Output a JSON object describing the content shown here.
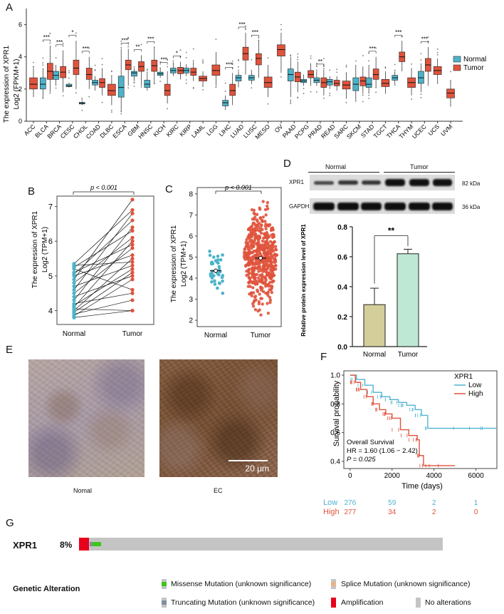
{
  "panels": {
    "A": "A",
    "B": "B",
    "C": "C",
    "D": "D",
    "E": "E",
    "F": "F",
    "G": "G"
  },
  "colors": {
    "normal": "#4cb3c9",
    "tumor": "#e0533c",
    "bar_normal": "#d4cf9a",
    "bar_tumor": "#bfe8d4",
    "amplification": "#e8001c",
    "missense": "#3cc71a",
    "truncating": "#7f8f9f",
    "splice": "#e8b48a",
    "no_alt": "#c4c4c4",
    "km_low": "#4fb4d0",
    "km_high": "#e0533c"
  },
  "chart_data": [
    {
      "id": "A",
      "type": "box",
      "ylabel": "The expression of XPR1",
      "ylabel2": "Log2 (FPKM+1)",
      "ylim": [
        0,
        7
      ],
      "yticks": [
        0,
        2,
        4,
        6
      ],
      "legend": [
        "Normal",
        "Tumor"
      ],
      "categories": [
        "ACC",
        "BLCA",
        "BRCA",
        "CESC",
        "CHOL",
        "COAD",
        "DLBC",
        "ESCA",
        "GBM",
        "HNSC",
        "KICH",
        "KIRC",
        "KIRP",
        "LAML",
        "LGG",
        "LIHC",
        "LUAD",
        "LUSC",
        "MESO",
        "OV",
        "PAAD",
        "PCPG",
        "PRAD",
        "READ",
        "SARC",
        "SKCM",
        "STAD",
        "TGCT",
        "THCA",
        "THYM",
        "UCEC",
        "UCS",
        "UVM"
      ],
      "significance": [
        "",
        "***",
        "***",
        "*",
        "***",
        "",
        "",
        "***",
        "**",
        "***",
        "***",
        "*",
        "",
        "",
        "",
        "***",
        "***",
        "***",
        "",
        "",
        "",
        "",
        "**",
        "",
        "",
        "",
        "***",
        "",
        "***",
        "",
        "***",
        "",
        ""
      ],
      "normal": [
        null,
        [
          1.5,
          2.0,
          2.3,
          2.7,
          3.3
        ],
        [
          2.2,
          2.6,
          2.85,
          3.1,
          3.5
        ],
        [
          2.1,
          2.15,
          2.2,
          2.3,
          2.4
        ],
        [
          1.0,
          1.07,
          1.12,
          1.17,
          1.25
        ],
        [
          1.9,
          2.25,
          2.4,
          2.55,
          2.8
        ],
        null,
        [
          0.6,
          1.5,
          2.1,
          2.8,
          4.5
        ],
        [
          2.5,
          2.8,
          3.0,
          3.1,
          3.3
        ],
        [
          1.9,
          2.1,
          2.3,
          2.55,
          3.0
        ],
        [
          2.7,
          2.85,
          2.95,
          3.05,
          3.3
        ],
        [
          2.8,
          3.0,
          3.15,
          3.3,
          3.6
        ],
        [
          2.8,
          3.0,
          3.15,
          3.3,
          3.55
        ],
        null,
        null,
        [
          0.7,
          0.95,
          1.15,
          1.3,
          1.6
        ],
        [
          2.1,
          2.5,
          2.7,
          2.85,
          3.1
        ],
        [
          2.3,
          2.55,
          2.7,
          2.85,
          3.1
        ],
        null,
        null,
        [
          1.5,
          2.5,
          2.9,
          3.25,
          4.0
        ],
        [
          2.2,
          2.4,
          2.5,
          2.6,
          2.9
        ],
        [
          2.2,
          2.4,
          2.55,
          2.7,
          3.1
        ],
        [
          2.0,
          2.25,
          2.45,
          2.6,
          2.8
        ],
        null,
        [
          1.3,
          1.9,
          2.3,
          2.7,
          3.5
        ],
        [
          1.8,
          2.1,
          2.3,
          2.7,
          3.5
        ],
        null,
        [
          2.3,
          2.55,
          2.7,
          2.85,
          3.1
        ],
        null,
        [
          1.8,
          2.35,
          2.7,
          3.1,
          3.6
        ],
        null,
        null
      ],
      "tumor": [
        [
          1.5,
          2.0,
          2.3,
          2.7,
          3.3
        ],
        [
          1.8,
          2.6,
          3.1,
          3.6,
          4.7
        ],
        [
          1.8,
          2.7,
          3.05,
          3.4,
          4.4
        ],
        [
          2.0,
          2.9,
          3.3,
          3.8,
          5.0
        ],
        [
          2.0,
          2.6,
          2.9,
          3.3,
          4.0
        ],
        [
          1.6,
          2.1,
          2.4,
          2.65,
          3.3
        ],
        [
          1.0,
          1.6,
          1.9,
          2.3,
          2.8
        ],
        [
          2.2,
          3.2,
          3.5,
          3.8,
          4.5
        ],
        [
          2.2,
          3.1,
          3.4,
          3.7,
          4.1
        ],
        [
          2.4,
          3.1,
          3.45,
          3.8,
          4.6
        ],
        [
          1.1,
          1.6,
          1.9,
          2.3,
          3.1
        ],
        [
          2.6,
          2.95,
          3.15,
          3.35,
          3.7
        ],
        [
          2.5,
          2.85,
          3.05,
          3.3,
          3.7
        ],
        [
          2.2,
          2.5,
          2.65,
          2.8,
          3.1
        ],
        [
          2.2,
          2.85,
          3.15,
          3.5,
          4.3
        ],
        [
          1.0,
          1.6,
          1.9,
          2.3,
          3.0
        ],
        [
          2.9,
          3.8,
          4.2,
          4.6,
          5.5
        ],
        [
          2.7,
          3.5,
          3.9,
          4.2,
          5.0
        ],
        [
          1.5,
          2.1,
          2.4,
          2.75,
          3.5
        ],
        [
          3.0,
          4.05,
          4.45,
          4.75,
          5.5
        ],
        [
          1.8,
          2.45,
          2.75,
          3.05,
          3.7
        ],
        [
          2.2,
          2.7,
          2.9,
          3.15,
          3.6
        ],
        [
          1.6,
          2.1,
          2.4,
          2.7,
          3.2
        ],
        [
          1.9,
          2.2,
          2.35,
          2.55,
          2.8
        ],
        [
          1.4,
          2.0,
          2.25,
          2.5,
          3.0
        ],
        [
          1.7,
          2.2,
          2.5,
          2.75,
          3.4
        ],
        [
          2.1,
          2.6,
          2.9,
          3.25,
          4.0
        ],
        [
          1.7,
          2.15,
          2.35,
          2.6,
          3.1
        ],
        [
          3.1,
          3.7,
          4.0,
          4.3,
          5.0
        ],
        [
          1.6,
          2.1,
          2.4,
          2.7,
          3.3
        ],
        [
          2.3,
          3.1,
          3.5,
          3.9,
          4.6
        ],
        [
          2.4,
          2.9,
          3.15,
          3.4,
          3.9
        ],
        [
          0.9,
          1.45,
          1.75,
          2.0,
          2.5
        ]
      ]
    },
    {
      "id": "B",
      "type": "paired-scatter",
      "ylabel": "The expression of XPR1",
      "ylabel2": "Log2 (TPM+1)",
      "categories": [
        "Normal",
        "Tumor"
      ],
      "ylim": [
        3.6,
        7.3
      ],
      "yticks": [
        4,
        5,
        6,
        7
      ],
      "annotation": "p < 0.001",
      "pairs": [
        [
          3.8,
          4.0
        ],
        [
          3.85,
          4.9
        ],
        [
          3.9,
          4.3
        ],
        [
          3.95,
          5.1
        ],
        [
          4.0,
          5.5
        ],
        [
          4.05,
          4.0
        ],
        [
          4.1,
          6.0
        ],
        [
          4.15,
          5.2
        ],
        [
          4.2,
          4.5
        ],
        [
          4.3,
          6.4
        ],
        [
          4.4,
          5.0
        ],
        [
          4.5,
          5.8
        ],
        [
          4.6,
          6.8
        ],
        [
          4.7,
          5.3
        ],
        [
          4.8,
          6.1
        ],
        [
          4.9,
          7.2
        ],
        [
          5.0,
          5.6
        ],
        [
          5.05,
          6.6
        ],
        [
          5.1,
          5.9
        ],
        [
          5.2,
          4.6
        ],
        [
          5.25,
          6.3
        ],
        [
          5.3,
          5.4
        ],
        [
          5.35,
          6.9
        ]
      ]
    },
    {
      "id": "C",
      "type": "scatter",
      "ylabel": "The expression of XPR1",
      "ylabel2": "Log2 (TPM+1)",
      "categories": [
        "Normal",
        "Tumor"
      ],
      "ylim": [
        1.7,
        8.3
      ],
      "yticks": [
        2,
        3,
        4,
        5,
        6,
        7,
        8
      ],
      "annotation": "p < 0.001",
      "means": [
        4.35,
        4.95
      ]
    },
    {
      "id": "D",
      "type": "bar",
      "blot_groups": [
        "Normal",
        "Tumor"
      ],
      "blot_rows": [
        {
          "label": "XPR1",
          "size": "82 kDa"
        },
        {
          "label": "GAPDH",
          "size": "36 kDa"
        }
      ],
      "ylabel": "Relative protein expression level of XPR1",
      "categories": [
        "Normal",
        "Tumor"
      ],
      "values": [
        0.28,
        0.62
      ],
      "errors": [
        0.11,
        0.03
      ],
      "ylim": [
        0,
        0.8
      ],
      "yticks": [
        "0.0",
        "0.2",
        "0.4",
        "0.6",
        "0.8"
      ],
      "significance": "**"
    },
    {
      "id": "F",
      "type": "line",
      "ylabel": "Survival probability",
      "xlabel": "Time (days)",
      "xlim": [
        -300,
        7000
      ],
      "ylim": [
        0.35,
        1.03
      ],
      "xticks": [
        "0",
        "2000",
        "4000",
        "6000"
      ],
      "yticks": [
        "0.4",
        "0.6",
        "0.8",
        "1.0"
      ],
      "legend_title": "XPR1",
      "series": [
        {
          "name": "Low",
          "x": [
            0,
            300,
            700,
            1100,
            1500,
            1900,
            2300,
            2700,
            3100,
            3400,
            3700,
            7000
          ],
          "y": [
            1.0,
            0.97,
            0.93,
            0.88,
            0.85,
            0.83,
            0.81,
            0.79,
            0.76,
            0.72,
            0.63,
            0.63
          ]
        },
        {
          "name": "High",
          "x": [
            0,
            250,
            500,
            800,
            1100,
            1400,
            1700,
            2000,
            2400,
            2800,
            3200,
            3300,
            3500,
            5000
          ],
          "y": [
            1.0,
            0.95,
            0.9,
            0.85,
            0.8,
            0.76,
            0.73,
            0.7,
            0.62,
            0.58,
            0.55,
            0.44,
            0.37,
            0.37
          ]
        }
      ],
      "stats": {
        "line1": "Overall Survival",
        "line2": "HR = 1.60 (1.06 − 2.42)",
        "line3": "P = 0.025"
      },
      "risk_table": [
        {
          "name": "Low",
          "values": [
            "276",
            "59",
            "2",
            "1"
          ]
        },
        {
          "name": "High",
          "values": [
            "277",
            "34",
            "2",
            "0"
          ]
        }
      ]
    }
  ],
  "ihc": {
    "labels": [
      "Nomal",
      "EC"
    ],
    "scale": "20 μm"
  },
  "oncoprint": {
    "gene": "XPR1",
    "pct": "8%",
    "title": "Genetic Alteration",
    "legend": [
      {
        "label": "Missense Mutation (unknown significance)"
      },
      {
        "label": "Splice Mutation (unknown significance)"
      },
      {
        "label": "Truncating Mutation (unknown significance)"
      },
      {
        "label": "Amplification"
      },
      {
        "label": "No alterations"
      }
    ]
  }
}
